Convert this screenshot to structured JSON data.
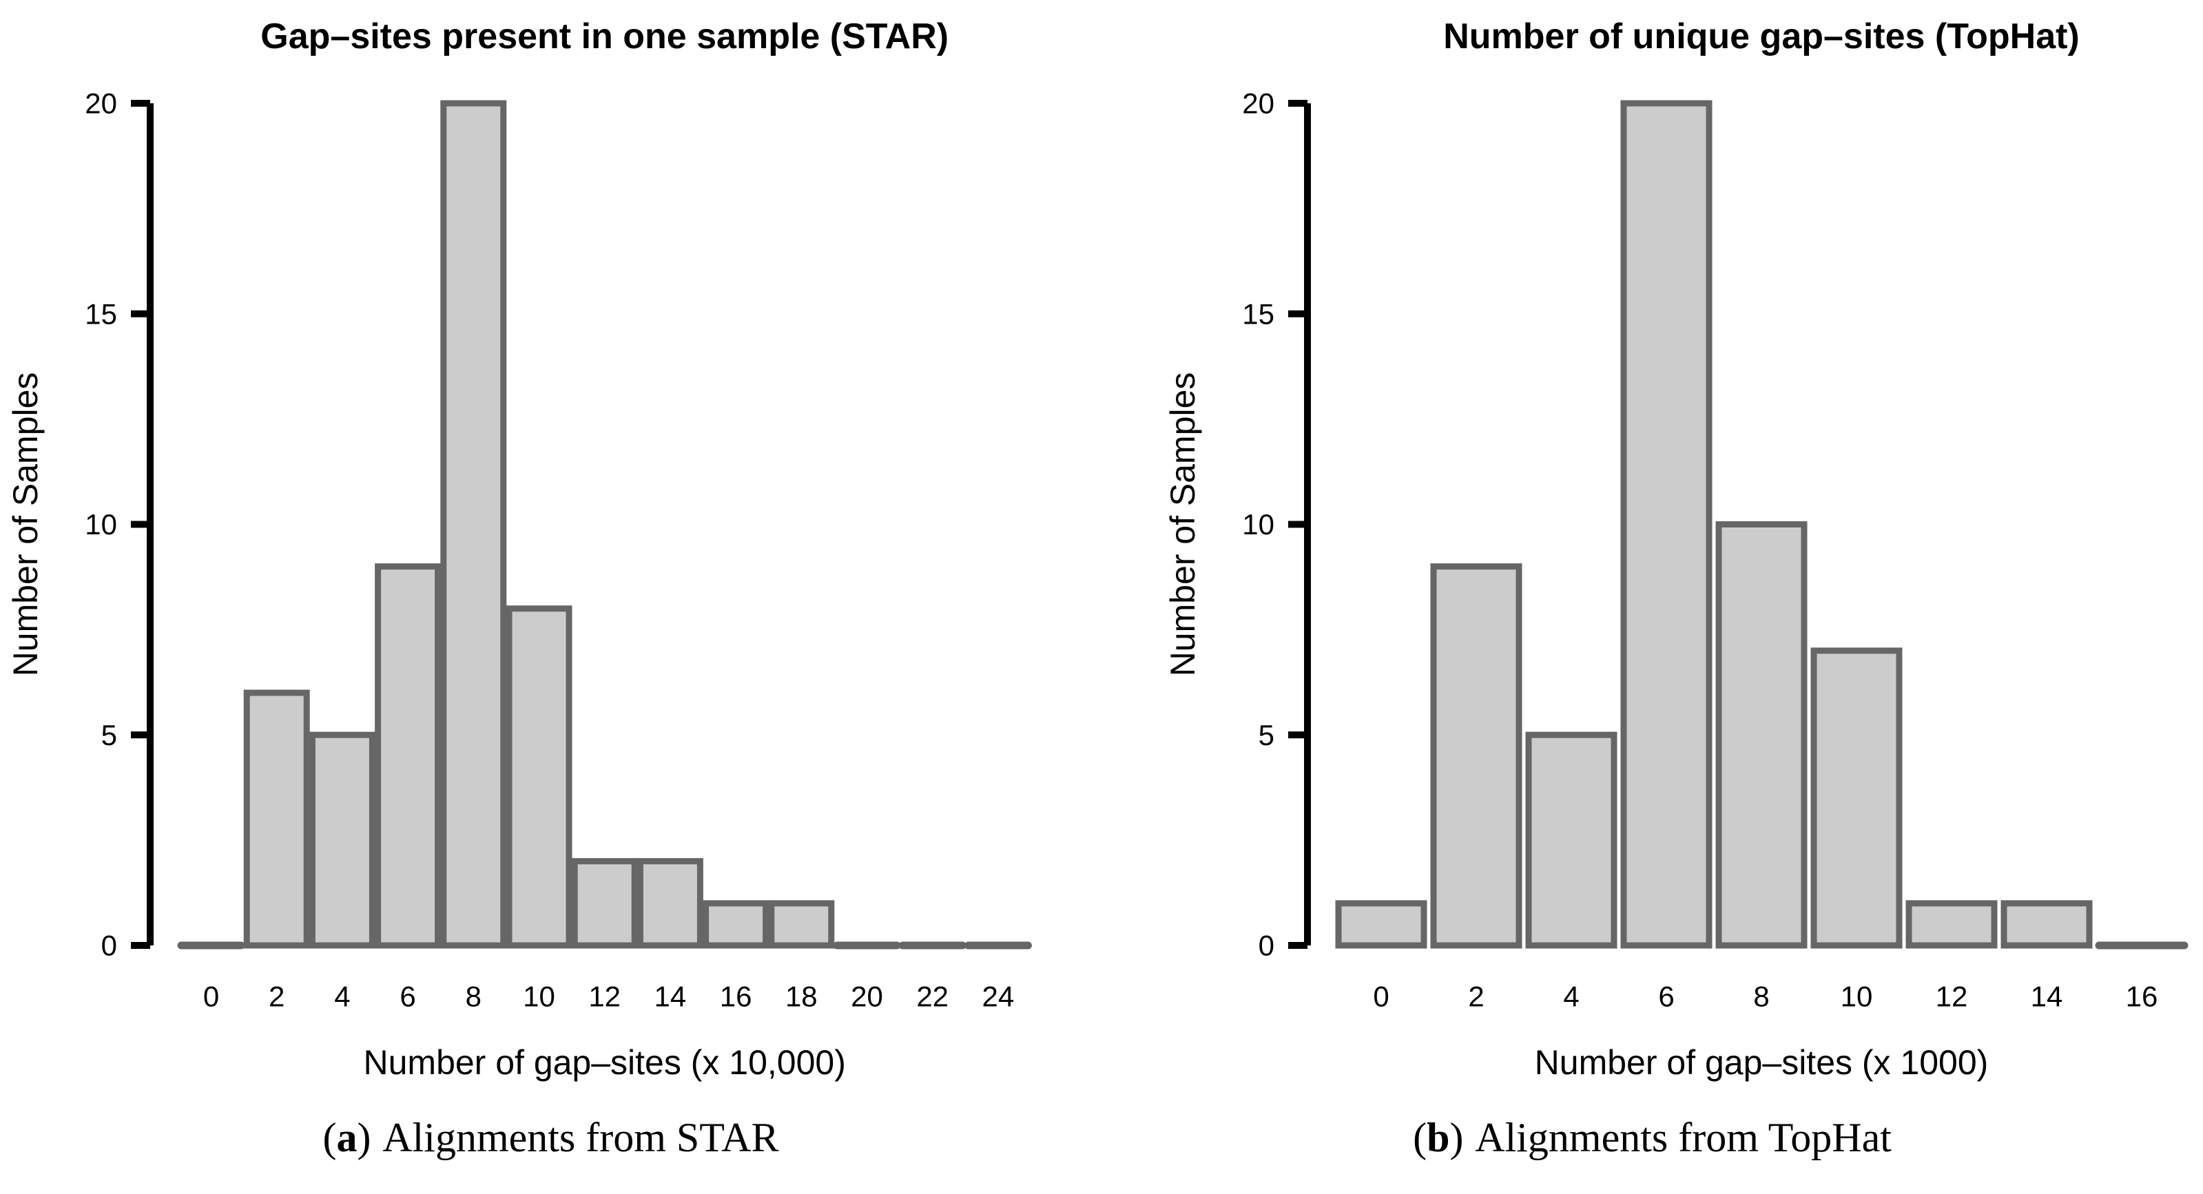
{
  "figure": {
    "background": "#ffffff"
  },
  "styles": {
    "bar_fill": "#cccccc",
    "bar_border": "#666666",
    "axis_color": "#000000",
    "text_color": "#000000"
  },
  "chart_data": [
    {
      "type": "bar",
      "title": "Gap–sites present in one sample (STAR)",
      "xlabel": "Number of gap–sites (x 10,000)",
      "ylabel": "Number of Samples",
      "categories": [
        "0",
        "2",
        "4",
        "6",
        "8",
        "10",
        "12",
        "14",
        "16",
        "18",
        "20",
        "22",
        "24"
      ],
      "values": [
        0,
        6,
        5,
        9,
        20,
        8,
        2,
        2,
        1,
        1,
        0,
        0,
        0
      ],
      "ylim": [
        0,
        20
      ],
      "yticks": [
        0,
        5,
        10,
        15,
        20
      ],
      "grid": false,
      "legend": "none",
      "caption": {
        "open": "(",
        "letter": "a",
        "close": ")",
        "text": "Alignments from STAR"
      }
    },
    {
      "type": "bar",
      "title": "Number of unique gap–sites (TopHat)",
      "xlabel": "Number of gap–sites (x 1000)",
      "ylabel": "Number of Samples",
      "categories": [
        "0",
        "2",
        "4",
        "6",
        "8",
        "10",
        "12",
        "14",
        "16"
      ],
      "values": [
        1,
        9,
        5,
        20,
        10,
        7,
        1,
        1,
        0
      ],
      "ylim": [
        0,
        20
      ],
      "yticks": [
        0,
        5,
        10,
        15,
        20
      ],
      "grid": false,
      "legend": "none",
      "caption": {
        "open": "(",
        "letter": "b",
        "close": ")",
        "text": "Alignments from TopHat"
      }
    }
  ]
}
